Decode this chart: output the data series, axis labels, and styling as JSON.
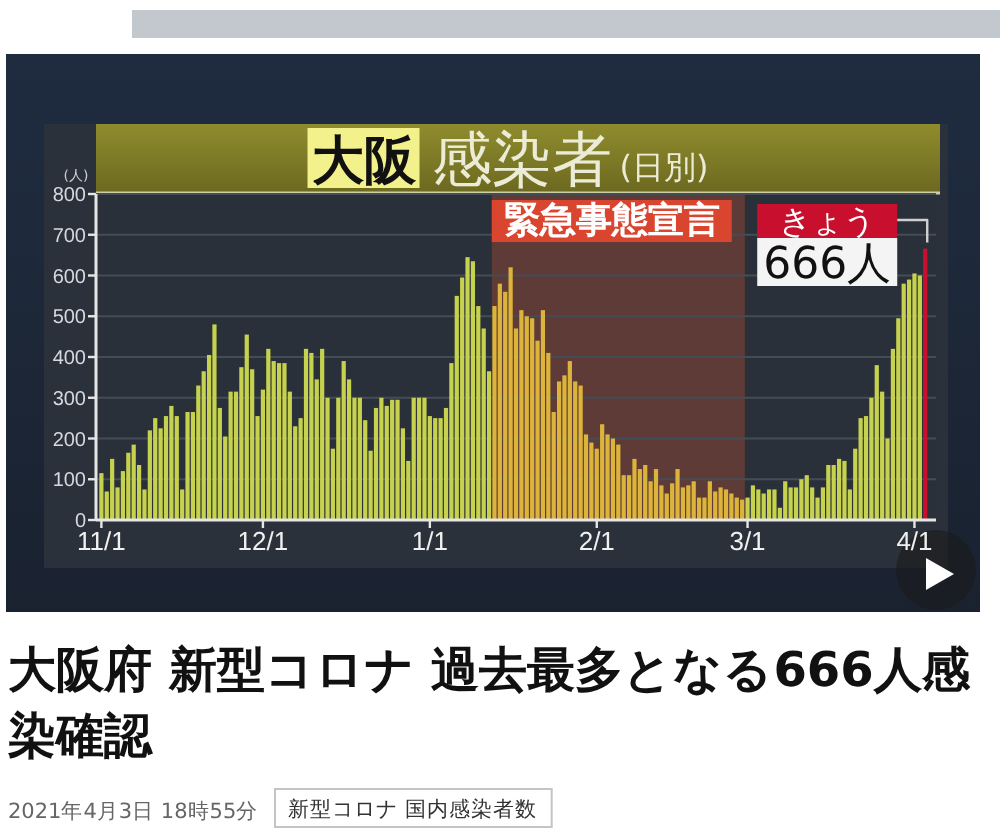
{
  "chart_data": {
    "type": "bar",
    "title": "大阪 感染者",
    "subtitle": "(日別)",
    "ylabel": "(人)",
    "x": [
      "2020-11-01",
      "2020-11-02",
      "2020-11-03",
      "2020-11-04",
      "2020-11-05",
      "2020-11-06",
      "2020-11-07",
      "2020-11-08",
      "2020-11-09",
      "2020-11-10",
      "2020-11-11",
      "2020-11-12",
      "2020-11-13",
      "2020-11-14",
      "2020-11-15",
      "2020-11-16",
      "2020-11-17",
      "2020-11-18",
      "2020-11-19",
      "2020-11-20",
      "2020-11-21",
      "2020-11-22",
      "2020-11-23",
      "2020-11-24",
      "2020-11-25",
      "2020-11-26",
      "2020-11-27",
      "2020-11-28",
      "2020-11-29",
      "2020-11-30",
      "2020-12-01",
      "2020-12-02",
      "2020-12-03",
      "2020-12-04",
      "2020-12-05",
      "2020-12-06",
      "2020-12-07",
      "2020-12-08",
      "2020-12-09",
      "2020-12-10",
      "2020-12-11",
      "2020-12-12",
      "2020-12-13",
      "2020-12-14",
      "2020-12-15",
      "2020-12-16",
      "2020-12-17",
      "2020-12-18",
      "2020-12-19",
      "2020-12-20",
      "2020-12-21",
      "2020-12-22",
      "2020-12-23",
      "2020-12-24",
      "2020-12-25",
      "2020-12-26",
      "2020-12-27",
      "2020-12-28",
      "2020-12-29",
      "2020-12-30",
      "2020-12-31",
      "2021-01-01",
      "2021-01-02",
      "2021-01-03",
      "2021-01-04",
      "2021-01-05",
      "2021-01-06",
      "2021-01-07",
      "2021-01-08",
      "2021-01-09",
      "2021-01-10",
      "2021-01-11",
      "2021-01-12",
      "2021-01-13",
      "2021-01-14",
      "2021-01-15",
      "2021-01-16",
      "2021-01-17",
      "2021-01-18",
      "2021-01-19",
      "2021-01-20",
      "2021-01-21",
      "2021-01-22",
      "2021-01-23",
      "2021-01-24",
      "2021-01-25",
      "2021-01-26",
      "2021-01-27",
      "2021-01-28",
      "2021-01-29",
      "2021-01-30",
      "2021-01-31",
      "2021-02-01",
      "2021-02-02",
      "2021-02-03",
      "2021-02-04",
      "2021-02-05",
      "2021-02-06",
      "2021-02-07",
      "2021-02-08",
      "2021-02-09",
      "2021-02-10",
      "2021-02-11",
      "2021-02-12",
      "2021-02-13",
      "2021-02-14",
      "2021-02-15",
      "2021-02-16",
      "2021-02-17",
      "2021-02-18",
      "2021-02-19",
      "2021-02-20",
      "2021-02-21",
      "2021-02-22",
      "2021-02-23",
      "2021-02-24",
      "2021-02-25",
      "2021-02-26",
      "2021-02-27",
      "2021-02-28",
      "2021-03-01",
      "2021-03-02",
      "2021-03-03",
      "2021-03-04",
      "2021-03-05",
      "2021-03-06",
      "2021-03-07",
      "2021-03-08",
      "2021-03-09",
      "2021-03-10",
      "2021-03-11",
      "2021-03-12",
      "2021-03-13",
      "2021-03-14",
      "2021-03-15",
      "2021-03-16",
      "2021-03-17",
      "2021-03-18",
      "2021-03-19",
      "2021-03-20",
      "2021-03-21",
      "2021-03-22",
      "2021-03-23",
      "2021-03-24",
      "2021-03-25",
      "2021-03-26",
      "2021-03-27",
      "2021-03-28",
      "2021-03-29",
      "2021-03-30",
      "2021-03-31",
      "2021-04-01",
      "2021-04-02",
      "2021-04-03"
    ],
    "values": [
      115,
      70,
      150,
      80,
      120,
      165,
      185,
      135,
      75,
      220,
      250,
      225,
      255,
      280,
      255,
      75,
      265,
      265,
      330,
      365,
      405,
      480,
      275,
      205,
      315,
      315,
      375,
      455,
      370,
      255,
      320,
      420,
      390,
      385,
      385,
      315,
      230,
      250,
      420,
      410,
      345,
      420,
      300,
      175,
      300,
      390,
      345,
      300,
      300,
      245,
      170,
      275,
      300,
      280,
      295,
      295,
      225,
      145,
      300,
      300,
      300,
      255,
      250,
      250,
      275,
      385,
      550,
      595,
      645,
      635,
      525,
      470,
      365,
      525,
      580,
      560,
      620,
      470,
      515,
      500,
      495,
      440,
      515,
      410,
      265,
      340,
      355,
      390,
      340,
      330,
      210,
      190,
      175,
      235,
      210,
      200,
      185,
      110,
      110,
      150,
      125,
      135,
      95,
      125,
      85,
      65,
      90,
      125,
      80,
      85,
      95,
      55,
      55,
      95,
      70,
      80,
      75,
      65,
      55,
      50,
      55,
      85,
      75,
      65,
      75,
      75,
      30,
      95,
      80,
      80,
      100,
      110,
      80,
      55,
      80,
      135,
      135,
      150,
      145,
      75,
      175,
      250,
      255,
      300,
      380,
      315,
      200,
      420,
      495,
      580,
      590,
      605,
      600,
      666
    ],
    "colors": [
      "#c6d24e",
      "#c6d24e",
      "#c6d24e",
      "#c6d24e",
      "#c6d24e",
      "#c6d24e",
      "#c6d24e",
      "#c6d24e",
      "#c6d24e",
      "#c6d24e",
      "#c6d24e",
      "#c6d24e",
      "#c6d24e",
      "#c6d24e",
      "#c6d24e",
      "#c6d24e",
      "#c6d24e",
      "#c6d24e",
      "#c6d24e",
      "#c6d24e",
      "#c6d24e",
      "#c6d24e",
      "#c6d24e",
      "#c6d24e",
      "#c6d24e",
      "#c6d24e",
      "#c6d24e",
      "#c6d24e",
      "#c6d24e",
      "#c6d24e",
      "#c6d24e",
      "#c6d24e",
      "#c6d24e",
      "#c6d24e",
      "#c6d24e",
      "#c6d24e",
      "#c6d24e",
      "#c6d24e",
      "#c6d24e",
      "#c6d24e",
      "#c6d24e",
      "#c6d24e",
      "#c6d24e",
      "#c6d24e",
      "#c6d24e",
      "#c6d24e",
      "#c6d24e",
      "#c6d24e",
      "#c6d24e",
      "#c6d24e",
      "#c6d24e",
      "#c6d24e",
      "#c6d24e",
      "#c6d24e",
      "#c6d24e",
      "#c6d24e",
      "#c6d24e",
      "#c6d24e",
      "#c6d24e",
      "#c6d24e",
      "#c6d24e",
      "#c6d24e",
      "#c6d24e",
      "#c6d24e",
      "#c6d24e",
      "#c6d24e",
      "#c6d24e",
      "#c6d24e",
      "#c6d24e",
      "#c6d24e",
      "#c6d24e",
      "#c6d24e",
      "#c6d24e",
      "#dcb43c",
      "#dcb43c",
      "#dcb43c",
      "#dcb43c",
      "#dcb43c",
      "#dcb43c",
      "#dcb43c",
      "#dcb43c",
      "#dcb43c",
      "#dcb43c",
      "#dcb43c",
      "#dcb43c",
      "#dcb43c",
      "#dcb43c",
      "#dcb43c",
      "#dcb43c",
      "#dcb43c",
      "#dcb43c",
      "#dcb43c",
      "#dcb43c",
      "#dcb43c",
      "#dcb43c",
      "#dcb43c",
      "#dcb43c",
      "#dcb43c",
      "#dcb43c",
      "#dcb43c",
      "#dcb43c",
      "#dcb43c",
      "#dcb43c",
      "#dcb43c",
      "#dcb43c",
      "#dcb43c",
      "#dcb43c",
      "#dcb43c",
      "#dcb43c",
      "#dcb43c",
      "#dcb43c",
      "#dcb43c",
      "#dcb43c",
      "#dcb43c",
      "#dcb43c",
      "#dcb43c",
      "#dcb43c",
      "#dcb43c",
      "#dcb43c",
      "#dcb43c",
      "#c6d24e",
      "#c6d24e",
      "#c6d24e",
      "#c6d24e",
      "#c6d24e",
      "#c6d24e",
      "#c6d24e",
      "#c6d24e",
      "#c6d24e",
      "#c6d24e",
      "#c6d24e",
      "#c6d24e",
      "#c6d24e",
      "#c6d24e",
      "#c6d24e",
      "#c6d24e",
      "#c6d24e",
      "#c6d24e",
      "#c6d24e",
      "#c6d24e",
      "#c6d24e",
      "#c6d24e",
      "#c6d24e",
      "#c6d24e",
      "#c6d24e",
      "#c6d24e",
      "#c6d24e",
      "#c6d24e",
      "#c6d24e",
      "#c6d24e",
      "#c6d24e",
      "#c6d24e",
      "#c6d24e",
      "#c8102e"
    ],
    "xlim": [
      "2020-10-31",
      "2021-04-05"
    ],
    "xticks": [
      {
        "value": "2020-11-01",
        "label": "11/1"
      },
      {
        "value": "2020-12-01",
        "label": "12/1"
      },
      {
        "value": "2021-01-01",
        "label": "1/1"
      },
      {
        "value": "2021-02-01",
        "label": "2/1"
      },
      {
        "value": "2021-03-01",
        "label": "3/1"
      },
      {
        "value": "2021-04-01",
        "label": "4/1"
      }
    ],
    "ylim": [
      0,
      800
    ],
    "yticks": [
      0,
      100,
      200,
      300,
      400,
      500,
      600,
      700,
      800
    ],
    "grid": "y",
    "bands": [
      {
        "axis": "x",
        "from": "2021-01-13",
        "to": "2021-02-28",
        "label": "緊急事態宣言",
        "color": "#5e3b36"
      }
    ],
    "annotations": [
      {
        "text": "きょう",
        "x": "2021-04-03",
        "y": 666
      },
      {
        "text": "666人",
        "x": "2021-04-03",
        "y": 666
      },
      "大阪府 新型コロナ 過去最多となる666人感染確認",
      "2021年4月3日 18時55分",
      "新型コロナ 国内感染者数"
    ]
  }
}
